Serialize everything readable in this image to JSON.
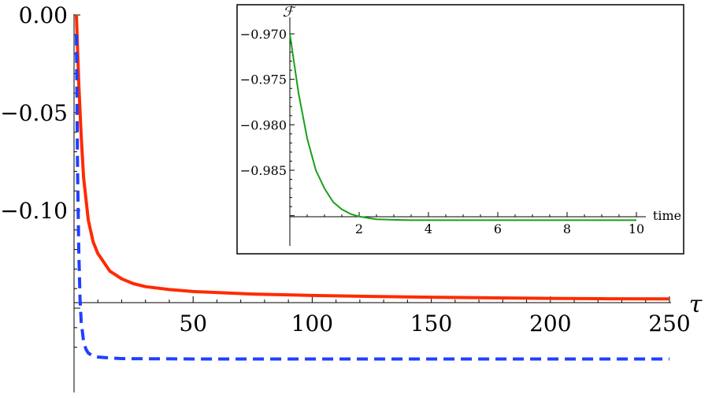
{
  "chart_data": [
    {
      "type": "line",
      "xlabel": "τ",
      "ylabel": "",
      "xlim": [
        0,
        250
      ],
      "ylim": [
        -0.16,
        0.0
      ],
      "x_ticks": [
        50,
        100,
        150,
        200,
        250
      ],
      "x_tick_labels": [
        "50",
        "100",
        "150",
        "200",
        "250"
      ],
      "y_ticks": [
        0.0,
        -0.05,
        -0.1
      ],
      "y_tick_labels": [
        "0.00",
        "−0.05",
        "−0.10"
      ],
      "grid": false,
      "series": [
        {
          "style": "solid",
          "color": "#ff2a00",
          "x": [
            1,
            2,
            3,
            4,
            6,
            8,
            10,
            15,
            20,
            25,
            30,
            40,
            50,
            75,
            100,
            125,
            150,
            175,
            200,
            225,
            250
          ],
          "y": [
            0.0,
            -0.035,
            -0.062,
            -0.083,
            -0.105,
            -0.116,
            -0.122,
            -0.131,
            -0.135,
            -0.1375,
            -0.139,
            -0.1405,
            -0.1415,
            -0.1428,
            -0.1435,
            -0.144,
            -0.1444,
            -0.1447,
            -0.145,
            -0.1452,
            -0.1453
          ]
        },
        {
          "style": "dashed",
          "color": "#1f3fff",
          "x": [
            1,
            1.5,
            2,
            2.5,
            3,
            4,
            5,
            6,
            8,
            10,
            15,
            20,
            50,
            100,
            150,
            200,
            250
          ],
          "y": [
            -0.01,
            -0.08,
            -0.12,
            -0.145,
            -0.157,
            -0.167,
            -0.171,
            -0.173,
            -0.1745,
            -0.175,
            -0.1755,
            -0.1758,
            -0.176,
            -0.176,
            -0.176,
            -0.176,
            -0.176
          ]
        }
      ]
    },
    {
      "type": "line",
      "xlabel": "time",
      "ylabel": "ℱ",
      "xlim": [
        0,
        10
      ],
      "ylim": [
        -0.9912,
        -0.9695
      ],
      "x_ticks": [
        2,
        4,
        6,
        8,
        10
      ],
      "x_tick_labels": [
        "2",
        "4",
        "6",
        "8",
        "10"
      ],
      "y_ticks": [
        -0.97,
        -0.975,
        -0.98,
        -0.985
      ],
      "y_tick_labels": [
        "−0.970",
        "−0.975",
        "−0.980",
        "−0.985"
      ],
      "grid": false,
      "series": [
        {
          "style": "solid",
          "color": "#1a9e1a",
          "x": [
            0,
            0.25,
            0.5,
            0.75,
            1,
            1.25,
            1.5,
            1.75,
            2,
            2.5,
            3,
            3.5,
            4,
            5,
            6,
            7,
            8,
            9,
            10
          ],
          "y": [
            -0.97,
            -0.9765,
            -0.9815,
            -0.985,
            -0.987,
            -0.9885,
            -0.9893,
            -0.9898,
            -0.9901,
            -0.9904,
            -0.99045,
            -0.9905,
            -0.9905,
            -0.9905,
            -0.9905,
            -0.9905,
            -0.9905,
            -0.9905,
            -0.9905
          ]
        }
      ]
    }
  ]
}
